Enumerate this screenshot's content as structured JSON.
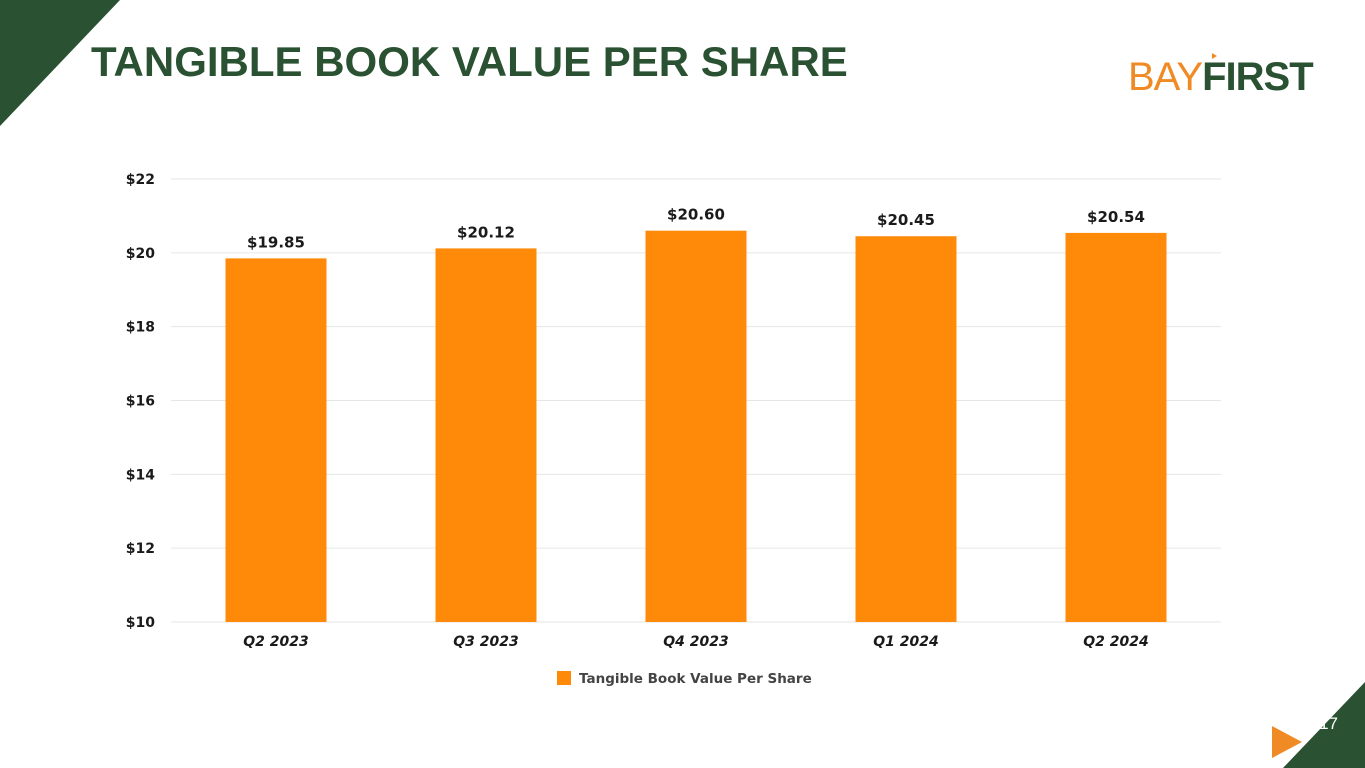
{
  "slide": {
    "title": "TANGIBLE BOOK VALUE PER SHARE",
    "page_number": "17",
    "logo": {
      "part1": "BAY",
      "part2": "FIRST"
    },
    "colors": {
      "brand_green": "#2a5132",
      "brand_orange": "#f08a24",
      "bar": "#ff8a0a"
    }
  },
  "chart_data": {
    "type": "bar",
    "categories": [
      "Q2 2023",
      "Q3 2023",
      "Q4 2023",
      "Q1 2024",
      "Q2 2024"
    ],
    "series": [
      {
        "name": "Tangible Book Value Per Share",
        "values": [
          19.85,
          20.12,
          20.6,
          20.45,
          20.54
        ],
        "labels": [
          "$19.85",
          "$20.12",
          "$20.60",
          "$20.45",
          "$20.54"
        ],
        "color": "#ff8a0a"
      }
    ],
    "ylim": [
      10,
      22
    ],
    "yticks": [
      10,
      12,
      14,
      16,
      18,
      20,
      22
    ],
    "ytick_labels": [
      "$10",
      "$12",
      "$14",
      "$16",
      "$18",
      "$20",
      "$22"
    ],
    "grid": true,
    "legend": "bottom-center"
  }
}
